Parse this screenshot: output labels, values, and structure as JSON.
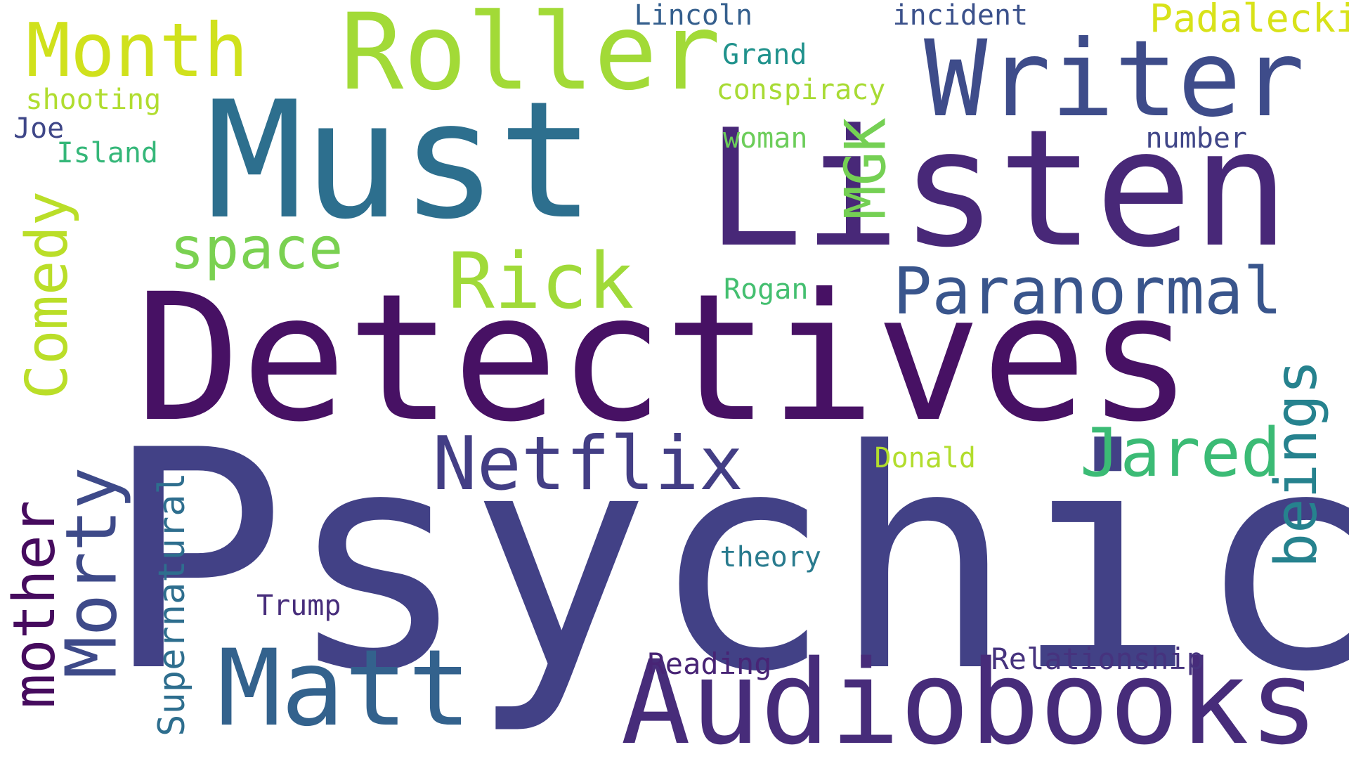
{
  "word_cloud": {
    "background": "#ffffff",
    "words": [
      {
        "text": "Psychic",
        "color": "#424186"
      },
      {
        "text": "Detectives",
        "color": "#471164"
      },
      {
        "text": "Listen",
        "color": "#482878"
      },
      {
        "text": "Must",
        "color": "#2d6f8e"
      },
      {
        "text": "Audiobooks",
        "color": "#472c7a"
      },
      {
        "text": "Writer",
        "color": "#3e4c8a"
      },
      {
        "text": "Roller",
        "color": "#a2da37"
      },
      {
        "text": "Matt",
        "color": "#33628d"
      },
      {
        "text": "Netflix",
        "color": "#433e85"
      },
      {
        "text": "Month",
        "color": "#d0e11c"
      },
      {
        "text": "Paranormal",
        "color": "#39558c"
      },
      {
        "text": "Rick",
        "color": "#a0da39"
      },
      {
        "text": "Jared",
        "color": "#3bbb75"
      },
      {
        "text": "Morty",
        "color": "#3e4a89"
      },
      {
        "text": "mother",
        "color": "#460b5e"
      },
      {
        "text": "Comedy",
        "color": "#bade28"
      },
      {
        "text": "space",
        "color": "#7ad151"
      },
      {
        "text": "beings",
        "color": "#26828e"
      },
      {
        "text": "MGK",
        "color": "#75d054"
      },
      {
        "text": "Supernatural",
        "color": "#2e6e8e"
      },
      {
        "text": "Padalecki",
        "color": "#d8e219"
      },
      {
        "text": "Relationship",
        "color": "#46337e"
      },
      {
        "text": "Reading",
        "color": "#482475"
      },
      {
        "text": "Lincoln",
        "color": "#355f8d"
      },
      {
        "text": "incident",
        "color": "#3b518b"
      },
      {
        "text": "Grand",
        "color": "#20928c"
      },
      {
        "text": "conspiracy",
        "color": "#a8db34"
      },
      {
        "text": "woman",
        "color": "#6ccd5a"
      },
      {
        "text": "number",
        "color": "#404688"
      },
      {
        "text": "shooting",
        "color": "#b0dd2f"
      },
      {
        "text": "Joe",
        "color": "#3f4788"
      },
      {
        "text": "Island",
        "color": "#35b779"
      },
      {
        "text": "Rogan",
        "color": "#44bf70"
      },
      {
        "text": "Donald",
        "color": "#b2dd2d"
      },
      {
        "text": "theory",
        "color": "#297b8e"
      },
      {
        "text": "Trump",
        "color": "#472d7b"
      }
    ]
  }
}
